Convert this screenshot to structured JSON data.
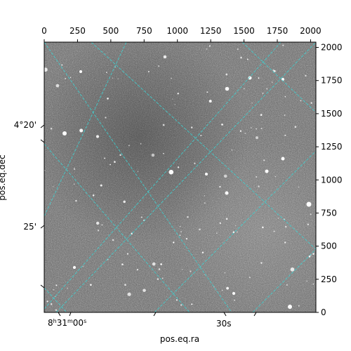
{
  "chart_data": {
    "type": "image",
    "xlabel": "pos.eq.ra",
    "ylabel": "pos.eq.dec",
    "pixel_axes": {
      "x": {
        "ticks": [
          0,
          250,
          500,
          750,
          1000,
          1250,
          1500,
          1750,
          2000
        ],
        "labels": [
          "0",
          "250",
          "500",
          "750",
          "1000",
          "1250",
          "1500",
          "1750",
          "2000"
        ],
        "range": [
          0,
          2040
        ]
      },
      "y": {
        "ticks": [
          0,
          250,
          500,
          750,
          1000,
          1250,
          1500,
          1750,
          2000
        ],
        "labels": [
          "0",
          "250",
          "500",
          "750",
          "1000",
          "1250",
          "1500",
          "1750",
          "2000"
        ],
        "range": [
          0,
          2040
        ]
      }
    },
    "ra_ticks": [
      {
        "label": "8h31m00s",
        "hour": "8",
        "minute": "31",
        "second": "00"
      },
      {
        "label": "30s"
      }
    ],
    "dec_ticks": [
      {
        "label": "4°20'"
      },
      {
        "label": "25'"
      }
    ],
    "grid": true,
    "grid_color": "#40d0d0",
    "image_colormap": "grayscale"
  }
}
